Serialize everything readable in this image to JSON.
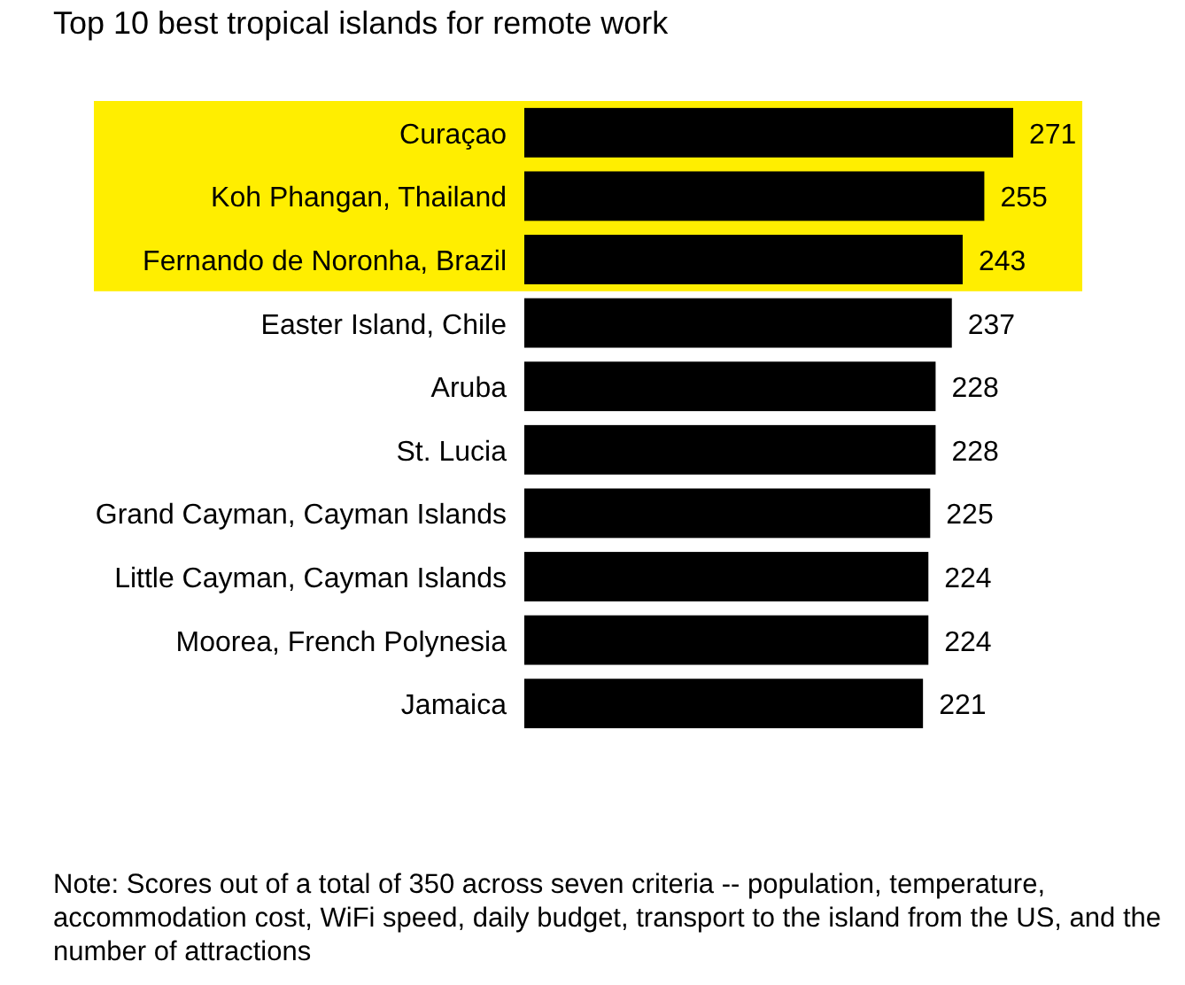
{
  "chart_data": {
    "type": "bar",
    "orientation": "horizontal",
    "title": "Top 10 best tropical islands for remote work",
    "categories": [
      "Curaçao",
      "Koh Phangan, Thailand",
      "Fernando de Noronha, Brazil",
      "Easter Island, Chile",
      "Aruba",
      "St. Lucia",
      "Grand Cayman, Cayman Islands",
      "Little Cayman, Cayman Islands",
      "Moorea, French Polynesia",
      "Jamaica"
    ],
    "values": [
      271,
      255,
      243,
      237,
      228,
      228,
      225,
      224,
      224,
      221
    ],
    "color": "#000000",
    "data_labels": true,
    "bands": [
      {
        "axis": "y",
        "from": "Curaçao",
        "to": "Fernando de Noronha, Brazil",
        "color": "#ffee00"
      }
    ],
    "annotations": [
      "Note: Scores out of a total of 350 across seven criteria -- population, temperature, accommodation cost, WiFi speed, daily budget, transport to the island from the US, and the number of attractions"
    ]
  }
}
